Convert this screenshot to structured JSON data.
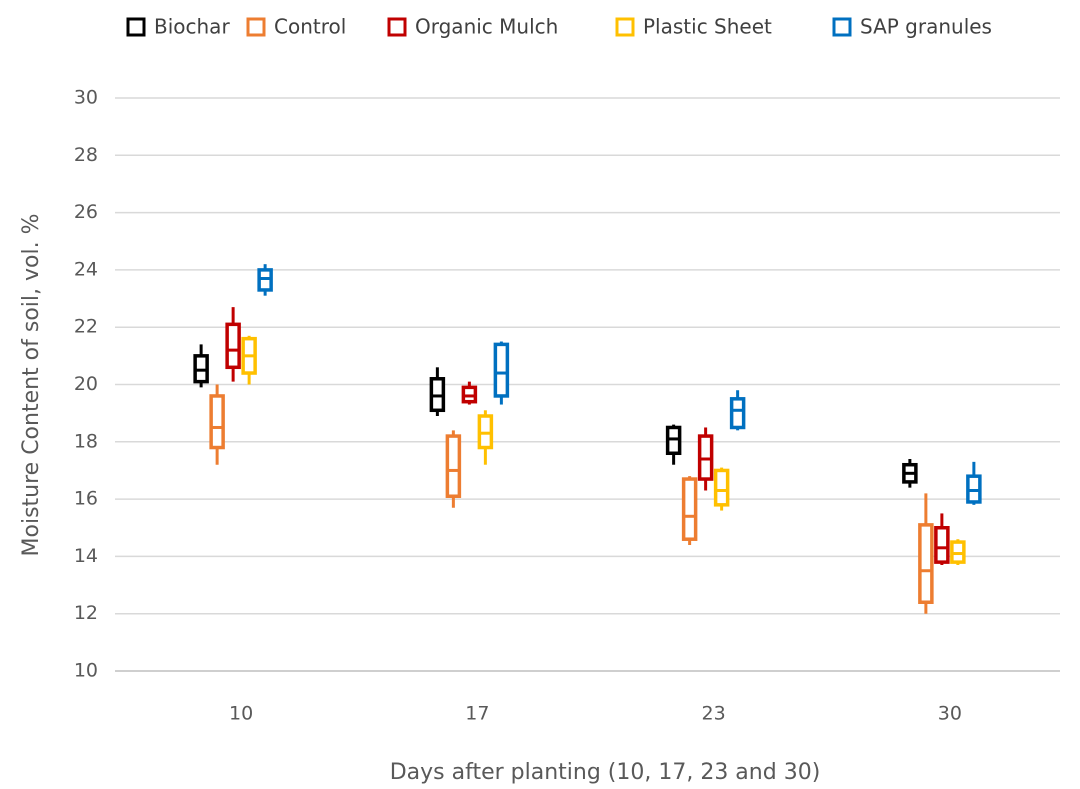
{
  "chart_data": {
    "type": "box",
    "x_label": "Days after planting (10, 17, 23 and 30)",
    "y_label": "Moisture Content of soil, vol. %",
    "categories": [
      "10",
      "17",
      "23",
      "30"
    ],
    "ylim": [
      10,
      30
    ],
    "yticks": [
      10,
      12,
      14,
      16,
      18,
      20,
      22,
      24,
      26,
      28,
      30
    ],
    "grid": true,
    "legend": "top",
    "series": [
      {
        "name": "Biochar",
        "color": "#000000",
        "min": [
          19.9,
          18.9,
          17.2,
          16.4
        ],
        "q1": [
          20.1,
          19.1,
          17.6,
          16.6
        ],
        "median": [
          20.5,
          19.6,
          18.1,
          16.9
        ],
        "q3": [
          21.0,
          20.2,
          18.5,
          17.2
        ],
        "max": [
          21.4,
          20.6,
          18.6,
          17.4
        ]
      },
      {
        "name": "Control",
        "color": "#ED7D31",
        "min": [
          17.2,
          15.7,
          14.4,
          12.0
        ],
        "q1": [
          17.8,
          16.1,
          14.6,
          12.4
        ],
        "median": [
          18.5,
          17.0,
          15.4,
          13.5
        ],
        "q3": [
          19.6,
          18.2,
          16.7,
          15.1
        ],
        "max": [
          20.0,
          18.4,
          16.8,
          16.2
        ]
      },
      {
        "name": "Organic Mulch",
        "color": "#C00000",
        "min": [
          20.1,
          19.3,
          16.3,
          13.7
        ],
        "q1": [
          20.6,
          19.4,
          16.7,
          13.8
        ],
        "median": [
          21.2,
          19.6,
          17.4,
          14.3
        ],
        "q3": [
          22.1,
          19.9,
          18.2,
          15.0
        ],
        "max": [
          22.7,
          20.1,
          18.5,
          15.5
        ]
      },
      {
        "name": "Plastic Sheet",
        "color": "#FFC000",
        "min": [
          20.0,
          17.2,
          15.6,
          13.7
        ],
        "q1": [
          20.4,
          17.8,
          15.8,
          13.8
        ],
        "median": [
          21.0,
          18.3,
          16.3,
          14.1
        ],
        "q3": [
          21.6,
          18.9,
          17.0,
          14.5
        ],
        "max": [
          21.7,
          19.1,
          17.1,
          14.6
        ]
      },
      {
        "name": "SAP granules",
        "color": "#0070C0",
        "min": [
          23.1,
          19.3,
          18.4,
          15.8
        ],
        "q1": [
          23.3,
          19.6,
          18.5,
          15.9
        ],
        "median": [
          23.7,
          20.4,
          19.1,
          16.3
        ],
        "q3": [
          24.0,
          21.4,
          19.5,
          16.8
        ],
        "max": [
          24.2,
          21.5,
          19.8,
          17.3
        ]
      }
    ]
  }
}
